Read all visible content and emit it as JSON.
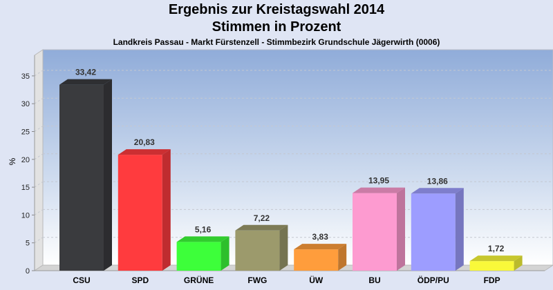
{
  "chart_data": {
    "type": "bar",
    "title": "Ergebnis zur Kreistagswahl 2014",
    "subtitle": "Stimmen in Prozent",
    "caption": "Landkreis Passau - Markt Fürstenzell - Stimmbezirk Grundschule Jägerwirth (0006)",
    "xlabel": "",
    "ylabel": "%",
    "ylim": [
      0,
      38
    ],
    "yticks": [
      0,
      5,
      10,
      15,
      20,
      25,
      30,
      35
    ],
    "grid": true,
    "categories": [
      "CSU",
      "SPD",
      "GRÜNE",
      "FWG",
      "ÜW",
      "BU",
      "ÖDP/PU",
      "FDP"
    ],
    "values": [
      33.42,
      20.83,
      5.16,
      7.22,
      3.83,
      13.95,
      13.86,
      1.72
    ],
    "labels": [
      "33,42",
      "20,83",
      "5,16",
      "7,22",
      "3,83",
      "13,95",
      "13,86",
      "1,72"
    ],
    "colors": [
      "#3a3b3e",
      "#ff3b3e",
      "#3dff3a",
      "#9c9a6c",
      "#ff9d3c",
      "#fd9bd0",
      "#9d9dff",
      "#f9f93a"
    ]
  }
}
